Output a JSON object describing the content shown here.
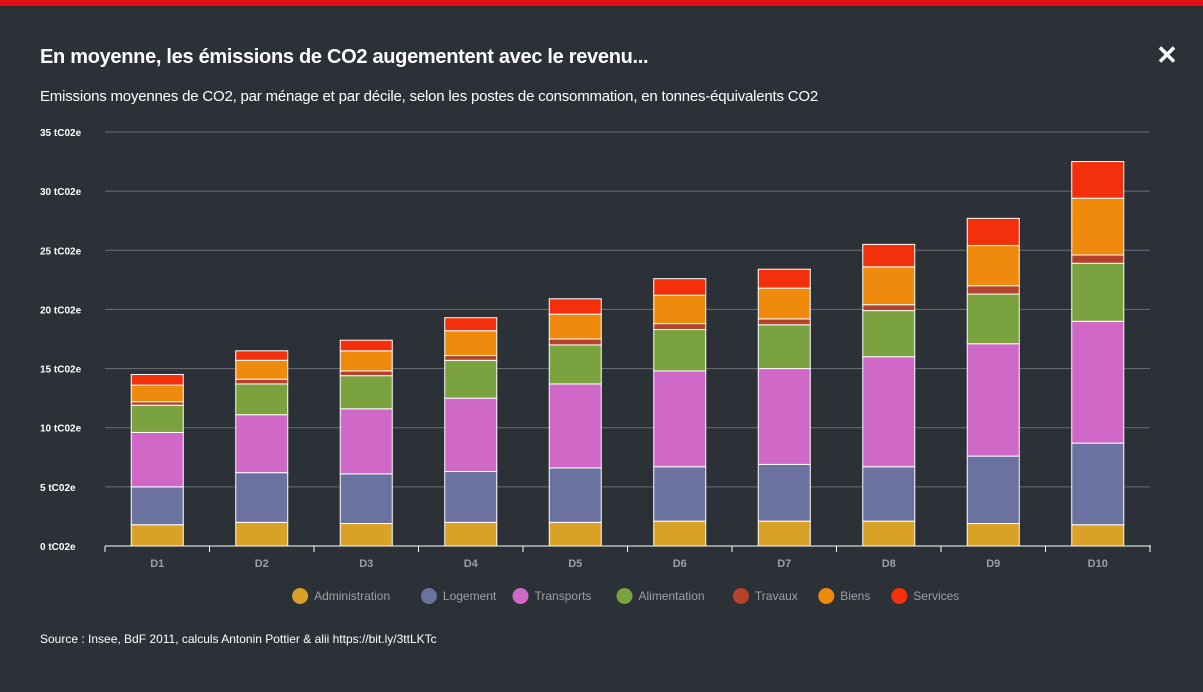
{
  "header": {
    "title": "En moyenne, les émissions de CO2 augementent avec le revenu...",
    "subtitle": "Emissions moyennes de CO2, par ménage et par décile, selon les postes de consommation, en tonnes-équivalents CO2",
    "close_label": "✕",
    "accent_color": "#e3101a"
  },
  "footer": {
    "source": "Source : Insee, BdF 2011, calculs Antonin Pottier & alii https://bit.ly/3ttLKTc"
  },
  "chart_data": {
    "type": "bar",
    "stacked": true,
    "categories": [
      "D1",
      "D2",
      "D3",
      "D4",
      "D5",
      "D6",
      "D7",
      "D8",
      "D9",
      "D10"
    ],
    "series": [
      {
        "name": "Administration",
        "color": "#d9a125",
        "values": [
          1.8,
          2.0,
          1.9,
          2.0,
          2.0,
          2.1,
          2.1,
          2.1,
          1.9,
          1.8
        ]
      },
      {
        "name": "Logement",
        "color": "#6b72a0",
        "values": [
          3.2,
          4.2,
          4.2,
          4.3,
          4.6,
          4.6,
          4.8,
          4.6,
          5.7,
          6.9
        ]
      },
      {
        "name": "Transports",
        "color": "#cf68c7",
        "values": [
          4.6,
          4.9,
          5.5,
          6.2,
          7.1,
          8.1,
          8.1,
          9.3,
          9.5,
          10.3
        ]
      },
      {
        "name": "Alimentation",
        "color": "#7aa23f",
        "values": [
          2.3,
          2.6,
          2.8,
          3.2,
          3.3,
          3.5,
          3.7,
          3.9,
          4.2,
          4.9
        ]
      },
      {
        "name": "Travaux",
        "color": "#b5432c",
        "values": [
          0.3,
          0.4,
          0.4,
          0.4,
          0.5,
          0.5,
          0.5,
          0.5,
          0.7,
          0.7
        ]
      },
      {
        "name": "Biens",
        "color": "#f08a0c",
        "values": [
          1.4,
          1.6,
          1.7,
          2.1,
          2.1,
          2.4,
          2.6,
          3.2,
          3.4,
          4.8
        ]
      },
      {
        "name": "Services",
        "color": "#f4300c",
        "values": [
          0.9,
          0.8,
          0.9,
          1.1,
          1.3,
          1.4,
          1.6,
          1.9,
          2.3,
          3.1
        ]
      }
    ],
    "y_ticks": [
      "0 tC02e",
      "5 tC02e",
      "10 tC02e",
      "15 tC02e",
      "20 tC02e",
      "25 tC02e",
      "30 tC02e",
      "35 tC02e"
    ],
    "ylim": [
      0,
      35
    ],
    "grid": true,
    "legend_position": "bottom"
  }
}
